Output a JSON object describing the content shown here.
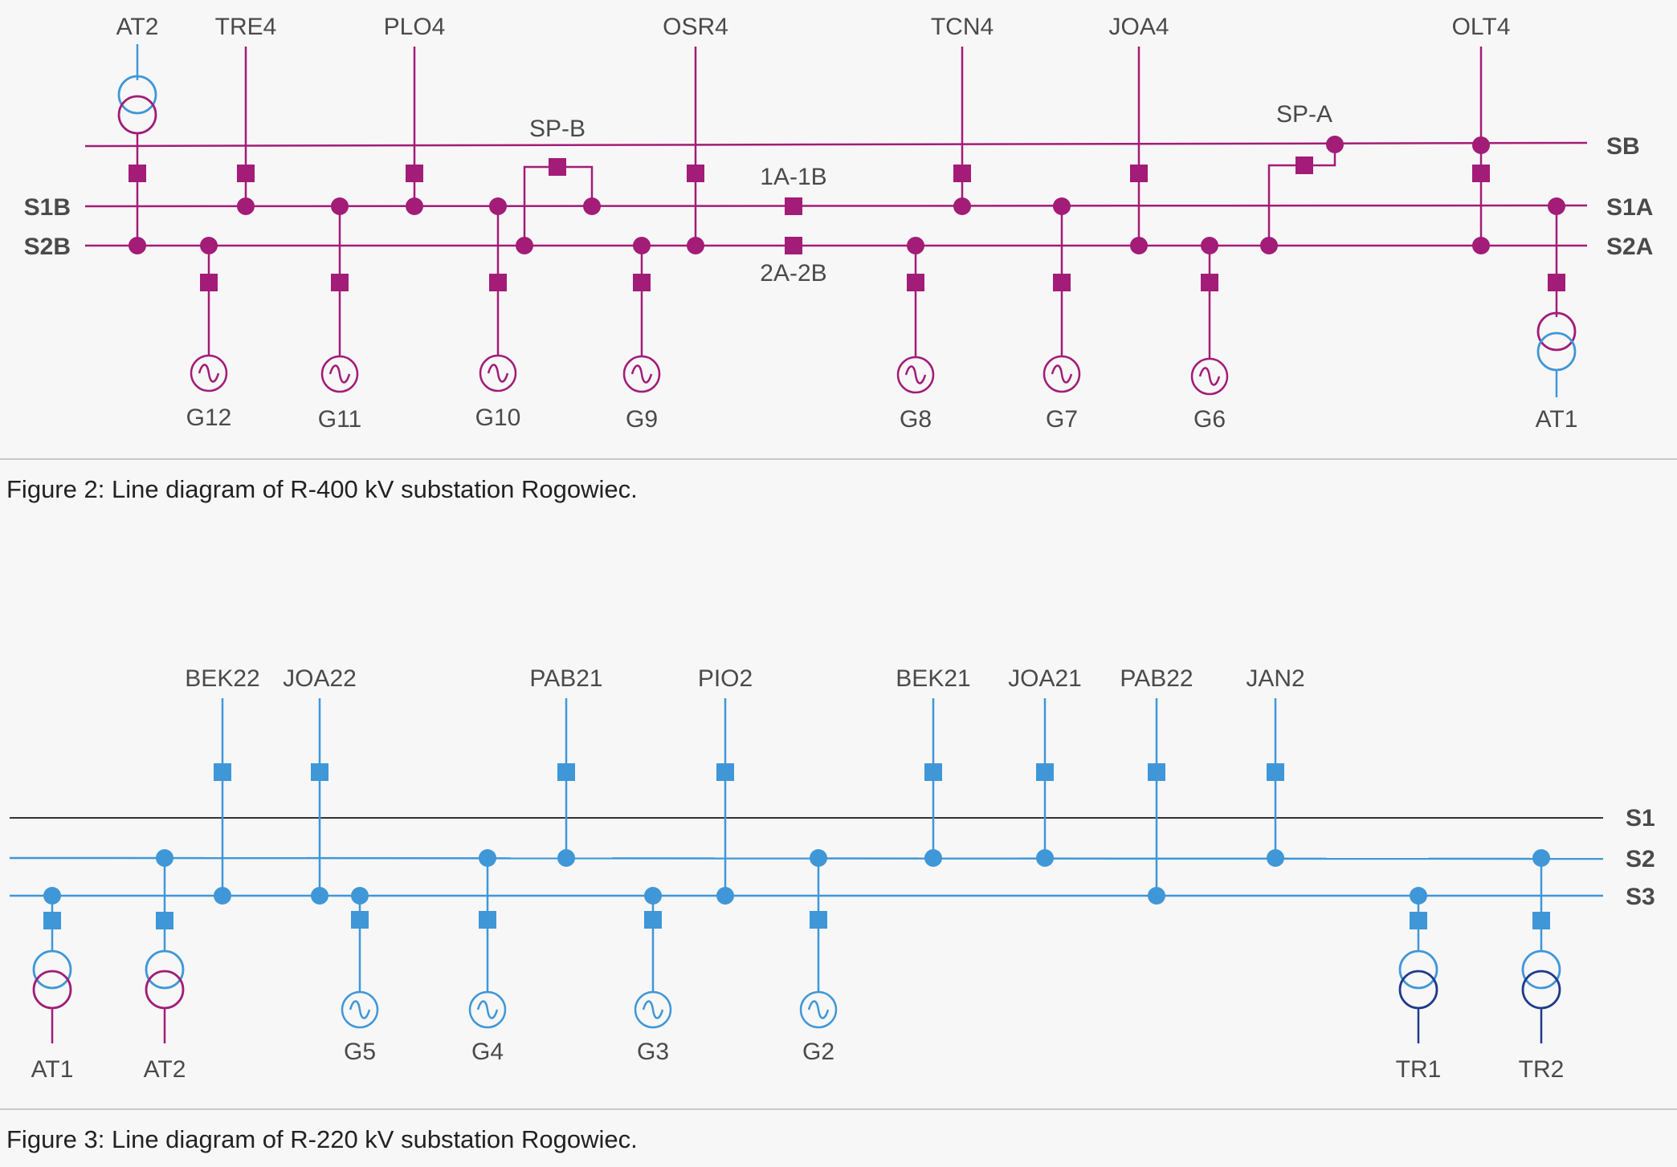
{
  "colors": {
    "magenta": "#a21c78",
    "blue": "#3f97d8",
    "dark_blue": "#1f3a8a",
    "black": "#333333",
    "text": "#4a4a4a"
  },
  "fig2": {
    "caption": "Figure 2: Line diagram of R-400 kV substation Rogowiec.",
    "buses": [
      "SB",
      "S1B",
      "S2B",
      "S1A",
      "S2A"
    ],
    "lines": [
      "AT2",
      "TRE4",
      "PLO4",
      "OSR4",
      "TCN4",
      "JOA4",
      "OLT4"
    ],
    "couplers": [
      "SP-B",
      "SP-A",
      "1A-1B",
      "2A-2B"
    ],
    "generators": [
      "G12",
      "G11",
      "G10",
      "G9",
      "G8",
      "G7",
      "G6"
    ],
    "transformer_bottom": "AT1"
  },
  "fig3": {
    "caption": "Figure 3: Line diagram of R-220 kV substation Rogowiec.",
    "buses": [
      "S1",
      "S2",
      "S3"
    ],
    "lines": [
      "BEK22",
      "JOA22",
      "PAB21",
      "PIO2",
      "BEK21",
      "JOA21",
      "PAB22",
      "JAN2"
    ],
    "generators": [
      "G5",
      "G4",
      "G3",
      "G2"
    ],
    "transformers": [
      "AT1",
      "AT2",
      "TR1",
      "TR2"
    ]
  }
}
